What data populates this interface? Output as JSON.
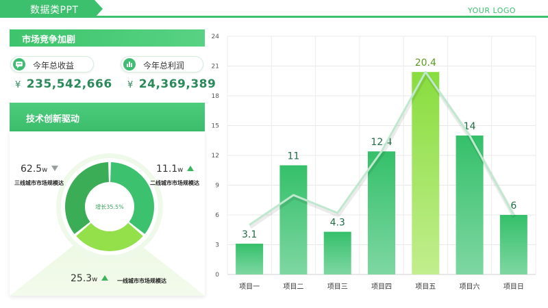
{
  "header": {
    "title": "数据类PPT",
    "logo": "YOUR LOGO",
    "accent": "#3cc06e"
  },
  "market": {
    "heading": "市场竞争加剧",
    "kpis": [
      {
        "label": "今年总收益",
        "currency": "¥",
        "value": "235,542,666",
        "icon": "chat-icon"
      },
      {
        "label": "今年总利润",
        "currency": "¥",
        "value": "24,369,389",
        "icon": "bar-chart-icon"
      }
    ]
  },
  "tech": {
    "heading": "技术创新驱动",
    "center_label": "增长35.5%",
    "segments": [
      {
        "name": "二线城市市场规模达",
        "value": "11.1",
        "unit": "w",
        "trend": "up",
        "color": "#3cc26f",
        "share": 0.36
      },
      {
        "name": "一线城市市场规模达",
        "value": "25.3",
        "unit": "w",
        "trend": "up",
        "color": "#93e04b",
        "share": 0.28
      },
      {
        "name": "三线城市市场规模达",
        "value": "62.5",
        "unit": "w",
        "trend": "down",
        "color": "#3aad56",
        "share": 0.36
      }
    ]
  },
  "chart_data": {
    "type": "bar",
    "categories": [
      "项目一",
      "项目二",
      "项目三",
      "项目四",
      "项目五",
      "项目六",
      "项目日"
    ],
    "values": [
      3.1,
      11,
      4.3,
      12.4,
      20.4,
      14,
      6
    ],
    "value_labels": [
      "3.1",
      "11",
      "4.3",
      "12.4",
      "20.4",
      "14",
      "6"
    ],
    "line_values": [
      5,
      8,
      6.2,
      12.4,
      20.4,
      14,
      6
    ],
    "ylim": [
      0,
      24
    ],
    "yticks": [
      "0",
      "3",
      "6",
      "9",
      "12",
      "15",
      "18",
      "21",
      "24"
    ],
    "highlight_index": 4,
    "bar_color": "#3cc46e",
    "highlight_color": "#8fe04a",
    "label_color": "#1f6b45",
    "highlight_label_color": "#5b9a1e",
    "grid": true
  }
}
